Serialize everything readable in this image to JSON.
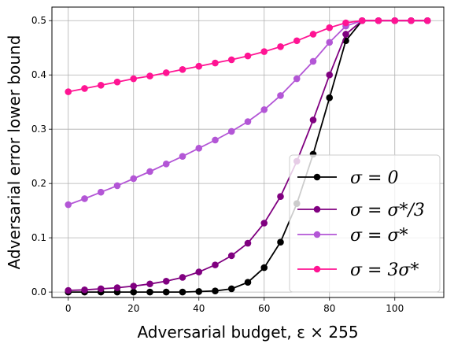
{
  "chart_data": {
    "type": "line",
    "xlabel": "Adversarial budget, ε × 255",
    "ylabel": "Adversarial error lower bound",
    "xlim": [
      -5,
      115
    ],
    "ylim": [
      -0.01,
      0.525
    ],
    "xticks": [
      0,
      20,
      40,
      60,
      80,
      100
    ],
    "yticks": [
      0.0,
      0.1,
      0.2,
      0.3,
      0.4,
      0.5
    ],
    "xtick_labels": [
      "0",
      "20",
      "40",
      "60",
      "80",
      "100"
    ],
    "ytick_labels": [
      "0.0",
      "0.1",
      "0.2",
      "0.3",
      "0.4",
      "0.5"
    ],
    "grid": true,
    "legend_position": "lower-right",
    "x": [
      0,
      5,
      10,
      15,
      20,
      25,
      30,
      35,
      40,
      45,
      50,
      55,
      60,
      65,
      70,
      75,
      80,
      85,
      90,
      95,
      100,
      105,
      110
    ],
    "series": [
      {
        "name": "σ = 0",
        "color": "#000000",
        "values": [
          0.0,
          0.0,
          0.0,
          0.0,
          0.0,
          0.0,
          0.0,
          0.0,
          0.001,
          0.002,
          0.006,
          0.018,
          0.045,
          0.092,
          0.163,
          0.254,
          0.358,
          0.463,
          0.5,
          0.5,
          0.5,
          0.5,
          0.5
        ]
      },
      {
        "name": "σ = σ*/3",
        "color": "#800080",
        "values": [
          0.003,
          0.004,
          0.006,
          0.008,
          0.011,
          0.015,
          0.02,
          0.027,
          0.037,
          0.05,
          0.067,
          0.09,
          0.127,
          0.176,
          0.241,
          0.317,
          0.4,
          0.475,
          0.5,
          0.5,
          0.5,
          0.5,
          0.5
        ]
      },
      {
        "name": "σ = σ*",
        "color": "#b356d6",
        "values": [
          0.161,
          0.172,
          0.184,
          0.196,
          0.209,
          0.222,
          0.236,
          0.25,
          0.265,
          0.28,
          0.296,
          0.314,
          0.336,
          0.362,
          0.393,
          0.425,
          0.46,
          0.49,
          0.5,
          0.5,
          0.5,
          0.5,
          0.5
        ]
      },
      {
        "name": "σ = 3σ*",
        "color": "#ff1493",
        "values": [
          0.369,
          0.375,
          0.381,
          0.387,
          0.393,
          0.398,
          0.404,
          0.41,
          0.416,
          0.422,
          0.428,
          0.435,
          0.443,
          0.452,
          0.463,
          0.475,
          0.487,
          0.496,
          0.5,
          0.5,
          0.5,
          0.5,
          0.5
        ]
      }
    ]
  }
}
